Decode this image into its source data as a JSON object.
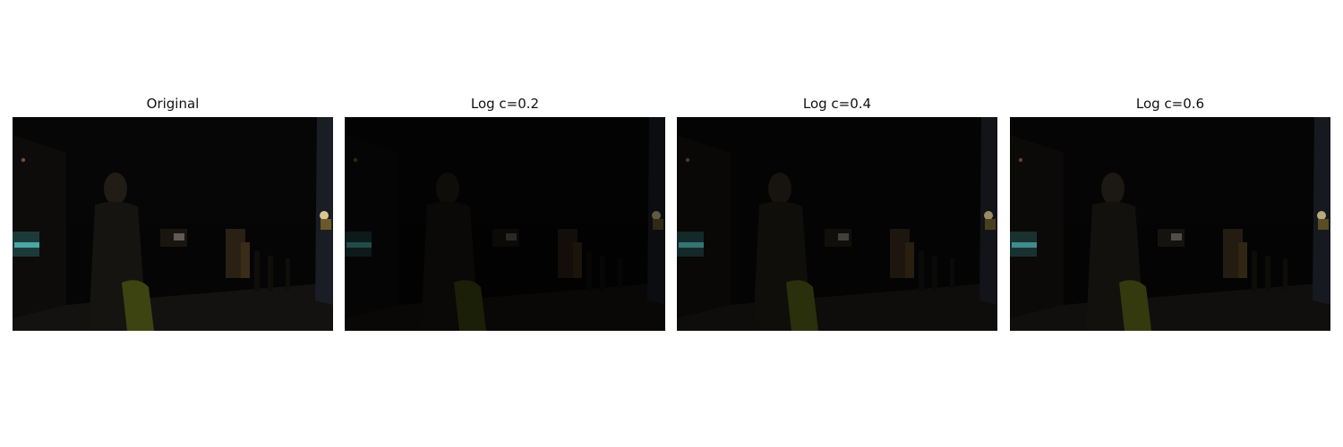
{
  "panels": [
    {
      "title": "Original",
      "brightness": 1.0
    },
    {
      "title": "Log c=0.2",
      "brightness": 0.45
    },
    {
      "title": "Log c=0.4",
      "brightness": 0.7
    },
    {
      "title": "Log c=0.6",
      "brightness": 0.85
    }
  ]
}
